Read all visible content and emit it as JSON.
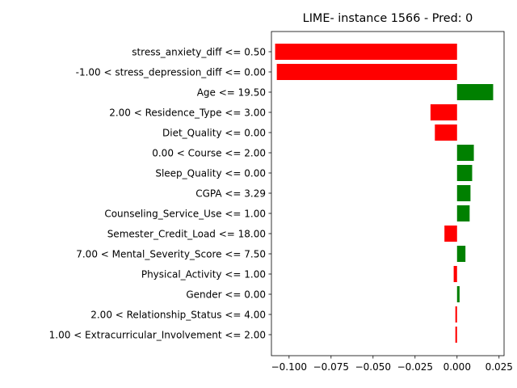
{
  "chart_data": {
    "type": "bar",
    "orientation": "horizontal",
    "title": "LIME- instance 1566 - Pred: 0",
    "xlabel": "",
    "ylabel": "",
    "xlim": [
      -0.1105,
      0.028
    ],
    "xticks": [
      -0.1,
      -0.075,
      -0.05,
      -0.025,
      0.0,
      0.025
    ],
    "xtick_labels": [
      "−0.100",
      "−0.075",
      "−0.050",
      "−0.025",
      "0.000",
      "0.025"
    ],
    "grid": false,
    "colors": {
      "positive": "#008000",
      "negative": "#ff0000"
    },
    "categories": [
      "stress_anxiety_diff <= 0.50",
      "-1.00 < stress_depression_diff <= 0.00",
      "Age <= 19.50",
      "2.00 < Residence_Type <= 3.00",
      "Diet_Quality <= 0.00",
      "0.00 < Course <= 2.00",
      "Sleep_Quality <= 0.00",
      "CGPA <= 3.29",
      "Counseling_Service_Use <= 1.00",
      "Semester_Credit_Load <= 18.00",
      "7.00 < Mental_Severity_Score <= 7.50",
      "Physical_Activity <= 1.00",
      "Gender <= 0.00",
      "2.00 < Relationship_Status <= 4.00",
      "1.00 < Extracurricular_Involvement <= 2.00"
    ],
    "values": [
      -0.1083,
      -0.1073,
      0.0215,
      -0.0158,
      -0.0132,
      0.01,
      0.009,
      0.008,
      0.0075,
      -0.0075,
      0.005,
      -0.002,
      0.0015,
      -0.001,
      -0.001
    ]
  }
}
